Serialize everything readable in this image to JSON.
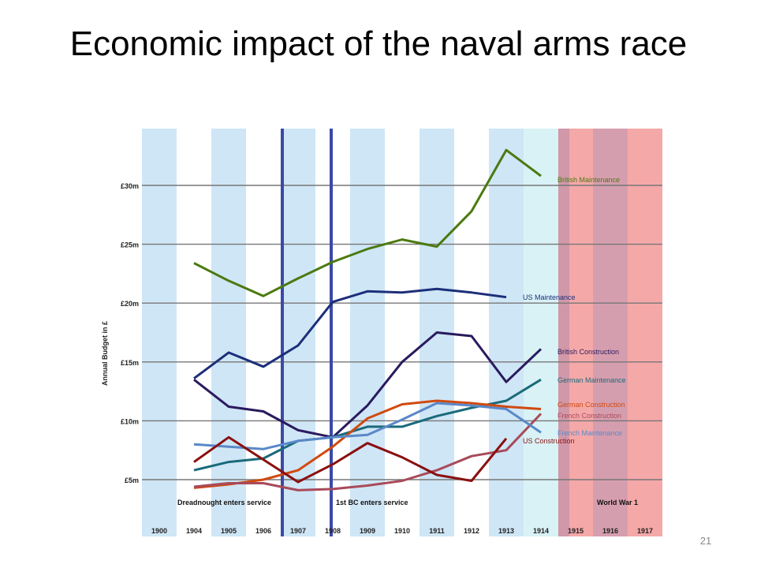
{
  "slide": {
    "title": "Economic impact of the naval arms race",
    "page_number": "21"
  },
  "chart_data": {
    "type": "line",
    "title": "",
    "xlabel": "",
    "ylabel": "Annual Budget in £",
    "ylim": [
      0,
      35
    ],
    "yticks": [
      {
        "value": 5,
        "label": "£5m"
      },
      {
        "value": 10,
        "label": "£10m"
      },
      {
        "value": 15,
        "label": "£15m"
      },
      {
        "value": 20,
        "label": "£20m"
      },
      {
        "value": 25,
        "label": "£25m"
      },
      {
        "value": 30,
        "label": "£30m"
      }
    ],
    "categories": [
      "1900",
      "1904",
      "1905",
      "1906",
      "1907",
      "1908",
      "1909",
      "1910",
      "1911",
      "1912",
      "1913",
      "1914",
      "1915",
      "1916",
      "1917"
    ],
    "grid": "horizontal",
    "series": [
      {
        "name": "British Maintenance",
        "color": "#4a7a10",
        "values": [
          null,
          23.4,
          21.9,
          20.6,
          22.1,
          23.5,
          24.6,
          25.4,
          24.8,
          27.8,
          33.0,
          30.8,
          null,
          null,
          null
        ]
      },
      {
        "name": "US Maintenance",
        "color": "#1c2f7a",
        "values": [
          null,
          13.6,
          15.8,
          14.6,
          16.4,
          20.1,
          21.0,
          20.9,
          21.2,
          20.9,
          20.5,
          null,
          null,
          null,
          null
        ]
      },
      {
        "name": "British Construction",
        "color": "#2a1a5e",
        "values": [
          null,
          13.5,
          11.2,
          10.8,
          9.2,
          8.6,
          11.3,
          15.0,
          17.5,
          17.2,
          13.3,
          16.1,
          null,
          null,
          null
        ]
      },
      {
        "name": "German Maintenance",
        "color": "#1a6a7a",
        "values": [
          null,
          5.8,
          6.5,
          6.8,
          8.3,
          8.6,
          9.5,
          9.5,
          10.4,
          11.1,
          11.7,
          13.5,
          null,
          null,
          null
        ]
      },
      {
        "name": "German Construction",
        "color": "#d04a10",
        "values": [
          null,
          4.3,
          4.6,
          5.0,
          5.8,
          7.8,
          10.2,
          11.4,
          11.7,
          11.5,
          11.2,
          11.0,
          null,
          null,
          null
        ]
      },
      {
        "name": "French Construction",
        "color": "#a84a5a",
        "values": [
          null,
          4.4,
          4.7,
          4.7,
          4.1,
          4.2,
          4.5,
          4.9,
          5.8,
          7.0,
          7.5,
          10.6,
          null,
          null,
          null
        ]
      },
      {
        "name": "French Maintenance",
        "color": "#5a88c8",
        "values": [
          null,
          8.0,
          7.8,
          7.6,
          8.3,
          8.6,
          8.8,
          10.1,
          11.5,
          11.3,
          11.0,
          9.0,
          null,
          null,
          null
        ]
      },
      {
        "name": "US Construction",
        "color": "#8a1010",
        "values": [
          null,
          6.5,
          8.6,
          6.7,
          4.8,
          6.3,
          8.1,
          6.9,
          5.4,
          4.9,
          8.5,
          null,
          null,
          null,
          null
        ]
      }
    ],
    "annotations": [
      {
        "label": "Dreadnought enters service",
        "after_category": "1906"
      },
      {
        "label": "1st BC enters service",
        "after_category": "1908"
      },
      {
        "label": "World War 1",
        "from_category": "1915",
        "to_category": "1917"
      }
    ]
  }
}
